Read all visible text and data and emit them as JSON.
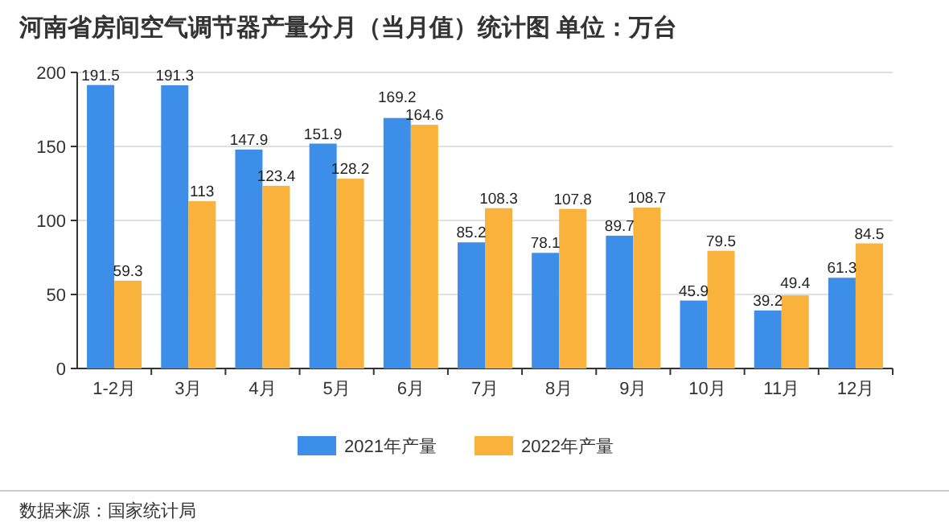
{
  "chart_data": {
    "type": "bar",
    "title": "河南省房间空气调节器产量分月（当月值）统计图 单位：万台",
    "categories": [
      "1-2月",
      "3月",
      "4月",
      "5月",
      "6月",
      "7月",
      "8月",
      "9月",
      "10月",
      "11月",
      "12月"
    ],
    "series": [
      {
        "name": "2021年产量",
        "color": "#3d8ee8",
        "values": [
          191.5,
          191.3,
          147.9,
          151.9,
          169.2,
          85.2,
          78.1,
          89.7,
          45.9,
          39.2,
          61.3
        ]
      },
      {
        "name": "2022年产量",
        "color": "#f9b23c",
        "values": [
          59.3,
          113,
          123.4,
          128.2,
          164.6,
          108.3,
          107.8,
          108.7,
          79.5,
          49.4,
          84.5
        ]
      }
    ],
    "ylim": [
      0,
      200
    ],
    "yticks": [
      0,
      50,
      100,
      150,
      200
    ],
    "grid": "y",
    "legend": "bottom",
    "data_labels": true,
    "annotations": [
      "数据来源：国家统计局"
    ]
  }
}
